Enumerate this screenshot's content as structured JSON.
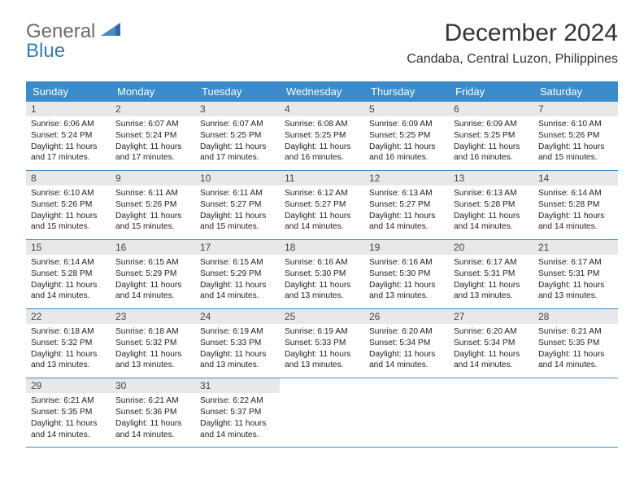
{
  "logo": {
    "line1": "General",
    "line2": "Blue"
  },
  "title": "December 2024",
  "location": "Candaba, Central Luzon, Philippines",
  "colors": {
    "header_bg": "#3a8ccc",
    "header_text": "#ffffff",
    "daynum_bg": "#e8e8e8",
    "rule": "#3a8ccc",
    "logo_gray": "#6b6b6b",
    "logo_blue": "#3a7ab8",
    "background": "#ffffff"
  },
  "typography": {
    "title_fontsize": 30,
    "location_fontsize": 16,
    "dayheader_fontsize": 13,
    "daynum_fontsize": 12,
    "cell_fontsize": 10.2
  },
  "dayHeaders": [
    "Sunday",
    "Monday",
    "Tuesday",
    "Wednesday",
    "Thursday",
    "Friday",
    "Saturday"
  ],
  "weeks": [
    [
      {
        "num": "1",
        "sunrise": "6:06 AM",
        "sunset": "5:24 PM",
        "daylight": "11 hours and 17 minutes."
      },
      {
        "num": "2",
        "sunrise": "6:07 AM",
        "sunset": "5:24 PM",
        "daylight": "11 hours and 17 minutes."
      },
      {
        "num": "3",
        "sunrise": "6:07 AM",
        "sunset": "5:25 PM",
        "daylight": "11 hours and 17 minutes."
      },
      {
        "num": "4",
        "sunrise": "6:08 AM",
        "sunset": "5:25 PM",
        "daylight": "11 hours and 16 minutes."
      },
      {
        "num": "5",
        "sunrise": "6:09 AM",
        "sunset": "5:25 PM",
        "daylight": "11 hours and 16 minutes."
      },
      {
        "num": "6",
        "sunrise": "6:09 AM",
        "sunset": "5:25 PM",
        "daylight": "11 hours and 16 minutes."
      },
      {
        "num": "7",
        "sunrise": "6:10 AM",
        "sunset": "5:26 PM",
        "daylight": "11 hours and 15 minutes."
      }
    ],
    [
      {
        "num": "8",
        "sunrise": "6:10 AM",
        "sunset": "5:26 PM",
        "daylight": "11 hours and 15 minutes."
      },
      {
        "num": "9",
        "sunrise": "6:11 AM",
        "sunset": "5:26 PM",
        "daylight": "11 hours and 15 minutes."
      },
      {
        "num": "10",
        "sunrise": "6:11 AM",
        "sunset": "5:27 PM",
        "daylight": "11 hours and 15 minutes."
      },
      {
        "num": "11",
        "sunrise": "6:12 AM",
        "sunset": "5:27 PM",
        "daylight": "11 hours and 14 minutes."
      },
      {
        "num": "12",
        "sunrise": "6:13 AM",
        "sunset": "5:27 PM",
        "daylight": "11 hours and 14 minutes."
      },
      {
        "num": "13",
        "sunrise": "6:13 AM",
        "sunset": "5:28 PM",
        "daylight": "11 hours and 14 minutes."
      },
      {
        "num": "14",
        "sunrise": "6:14 AM",
        "sunset": "5:28 PM",
        "daylight": "11 hours and 14 minutes."
      }
    ],
    [
      {
        "num": "15",
        "sunrise": "6:14 AM",
        "sunset": "5:28 PM",
        "daylight": "11 hours and 14 minutes."
      },
      {
        "num": "16",
        "sunrise": "6:15 AM",
        "sunset": "5:29 PM",
        "daylight": "11 hours and 14 minutes."
      },
      {
        "num": "17",
        "sunrise": "6:15 AM",
        "sunset": "5:29 PM",
        "daylight": "11 hours and 14 minutes."
      },
      {
        "num": "18",
        "sunrise": "6:16 AM",
        "sunset": "5:30 PM",
        "daylight": "11 hours and 13 minutes."
      },
      {
        "num": "19",
        "sunrise": "6:16 AM",
        "sunset": "5:30 PM",
        "daylight": "11 hours and 13 minutes."
      },
      {
        "num": "20",
        "sunrise": "6:17 AM",
        "sunset": "5:31 PM",
        "daylight": "11 hours and 13 minutes."
      },
      {
        "num": "21",
        "sunrise": "6:17 AM",
        "sunset": "5:31 PM",
        "daylight": "11 hours and 13 minutes."
      }
    ],
    [
      {
        "num": "22",
        "sunrise": "6:18 AM",
        "sunset": "5:32 PM",
        "daylight": "11 hours and 13 minutes."
      },
      {
        "num": "23",
        "sunrise": "6:18 AM",
        "sunset": "5:32 PM",
        "daylight": "11 hours and 13 minutes."
      },
      {
        "num": "24",
        "sunrise": "6:19 AM",
        "sunset": "5:33 PM",
        "daylight": "11 hours and 13 minutes."
      },
      {
        "num": "25",
        "sunrise": "6:19 AM",
        "sunset": "5:33 PM",
        "daylight": "11 hours and 13 minutes."
      },
      {
        "num": "26",
        "sunrise": "6:20 AM",
        "sunset": "5:34 PM",
        "daylight": "11 hours and 14 minutes."
      },
      {
        "num": "27",
        "sunrise": "6:20 AM",
        "sunset": "5:34 PM",
        "daylight": "11 hours and 14 minutes."
      },
      {
        "num": "28",
        "sunrise": "6:21 AM",
        "sunset": "5:35 PM",
        "daylight": "11 hours and 14 minutes."
      }
    ],
    [
      {
        "num": "29",
        "sunrise": "6:21 AM",
        "sunset": "5:35 PM",
        "daylight": "11 hours and 14 minutes."
      },
      {
        "num": "30",
        "sunrise": "6:21 AM",
        "sunset": "5:36 PM",
        "daylight": "11 hours and 14 minutes."
      },
      {
        "num": "31",
        "sunrise": "6:22 AM",
        "sunset": "5:37 PM",
        "daylight": "11 hours and 14 minutes."
      },
      null,
      null,
      null,
      null
    ]
  ],
  "labels": {
    "sunrise": "Sunrise:",
    "sunset": "Sunset:",
    "daylight": "Daylight:"
  }
}
